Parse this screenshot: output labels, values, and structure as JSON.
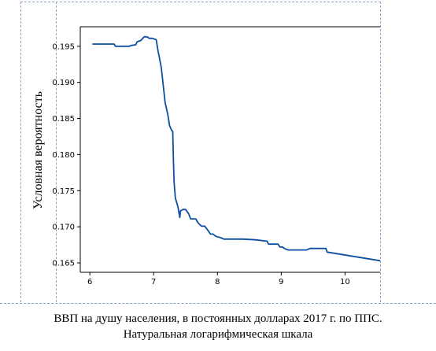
{
  "chart_data": {
    "type": "line",
    "title": "",
    "ylabel": "Условная вероятность",
    "xlabel_lines": [
      "ВВП на душу населения, в постоянных долларах 2017 г. по ППС.",
      "Натуральная логарифмическая шкала"
    ],
    "xlim": [
      5.85,
      10.55
    ],
    "ylim": [
      0.1637,
      0.1977
    ],
    "x_ticks": [
      "6",
      "7",
      "8",
      "9",
      "10"
    ],
    "y_ticks": [
      "0.195",
      "0.190",
      "0.185",
      "0.180",
      "0.175",
      "0.170",
      "0.165"
    ],
    "grid": false,
    "series": [
      {
        "color": "#0b4ea2",
        "x": [
          6.04,
          6.38,
          6.4,
          6.62,
          6.64,
          6.72,
          6.74,
          6.8,
          6.85,
          6.9,
          6.93,
          6.98,
          7.04,
          7.07,
          7.1,
          7.12,
          7.18,
          7.22,
          7.25,
          7.28,
          7.3,
          7.31,
          7.32,
          7.34,
          7.38,
          7.41,
          7.42,
          7.46,
          7.5,
          7.55,
          7.58,
          7.66,
          7.7,
          7.75,
          7.8,
          7.86,
          7.89,
          7.93,
          7.97,
          8.05,
          8.1,
          8.2,
          8.4,
          8.6,
          8.78,
          8.8,
          8.95,
          8.98,
          9.02,
          9.05,
          9.1,
          9.4,
          9.45,
          9.7,
          9.72,
          10.55
        ],
        "y": [
          0.1953,
          0.1953,
          0.195,
          0.195,
          0.1951,
          0.1952,
          0.1956,
          0.1958,
          0.1963,
          0.1963,
          0.1961,
          0.1961,
          0.1959,
          0.1943,
          0.193,
          0.192,
          0.1872,
          0.1856,
          0.184,
          0.1834,
          0.1832,
          0.179,
          0.1762,
          0.174,
          0.1728,
          0.1713,
          0.1722,
          0.1724,
          0.1724,
          0.1718,
          0.1711,
          0.1711,
          0.1705,
          0.1701,
          0.1701,
          0.1694,
          0.169,
          0.169,
          0.1687,
          0.1685,
          0.1683,
          0.1683,
          0.1683,
          0.1682,
          0.168,
          0.1676,
          0.1676,
          0.1672,
          0.1672,
          0.167,
          0.1668,
          0.1668,
          0.167,
          0.167,
          0.1665,
          0.1653
        ]
      }
    ]
  }
}
